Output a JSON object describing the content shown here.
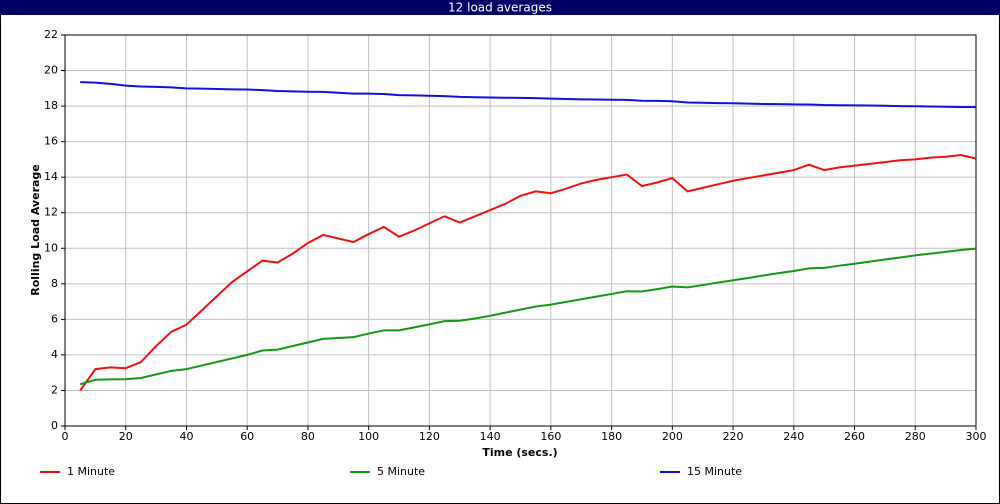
{
  "chart_data": {
    "type": "line",
    "title": "12 load averages",
    "x_label": "Time (secs.)",
    "y_label": "Rolling Load Average",
    "x": [
      5,
      10,
      15,
      20,
      25,
      30,
      35,
      40,
      45,
      50,
      55,
      60,
      65,
      70,
      75,
      80,
      85,
      90,
      95,
      100,
      105,
      110,
      115,
      120,
      125,
      130,
      135,
      140,
      145,
      150,
      155,
      160,
      165,
      170,
      175,
      180,
      185,
      190,
      195,
      200,
      205,
      210,
      215,
      220,
      225,
      230,
      235,
      240,
      245,
      250,
      255,
      260,
      265,
      270,
      275,
      280,
      285,
      290,
      295,
      300
    ],
    "series": [
      {
        "name": "1 Minute",
        "color": "#ee1111",
        "values": [
          2.0,
          3.2,
          3.3,
          3.25,
          3.6,
          4.5,
          5.3,
          5.7,
          6.5,
          7.3,
          8.1,
          8.7,
          9.3,
          9.2,
          9.7,
          10.3,
          10.75,
          10.55,
          10.35,
          10.8,
          11.2,
          10.65,
          11.0,
          11.4,
          11.8,
          11.45,
          11.8,
          12.15,
          12.5,
          12.95,
          13.2,
          13.1,
          13.35,
          13.65,
          13.85,
          14.0,
          14.15,
          13.5,
          13.7,
          13.95,
          13.2,
          13.4,
          13.6,
          13.8,
          13.95,
          14.1,
          14.25,
          14.4,
          14.7,
          14.4,
          14.55,
          14.65,
          14.75,
          14.85,
          14.95,
          15.0,
          15.1,
          15.15,
          15.25,
          15.05
        ]
      },
      {
        "name": "5 Minute",
        "color": "#119911",
        "values": [
          2.35,
          2.6,
          2.62,
          2.63,
          2.7,
          2.9,
          3.1,
          3.2,
          3.4,
          3.6,
          3.8,
          4.0,
          4.25,
          4.3,
          4.5,
          4.7,
          4.9,
          4.95,
          5.0,
          5.2,
          5.38,
          5.38,
          5.55,
          5.72,
          5.9,
          5.92,
          6.05,
          6.2,
          6.38,
          6.55,
          6.72,
          6.83,
          6.98,
          7.13,
          7.28,
          7.43,
          7.58,
          7.57,
          7.7,
          7.85,
          7.8,
          7.93,
          8.07,
          8.2,
          8.33,
          8.47,
          8.6,
          8.72,
          8.87,
          8.9,
          9.02,
          9.13,
          9.25,
          9.37,
          9.48,
          9.6,
          9.7,
          9.8,
          9.9,
          9.98
        ]
      },
      {
        "name": "15 Minute",
        "color": "#1111dd",
        "values": [
          19.35,
          19.32,
          19.25,
          19.15,
          19.1,
          19.08,
          19.05,
          19.0,
          18.98,
          18.96,
          18.94,
          18.93,
          18.9,
          18.85,
          18.83,
          18.81,
          18.8,
          18.75,
          18.7,
          18.7,
          18.68,
          18.62,
          18.6,
          18.58,
          18.56,
          18.52,
          18.5,
          18.48,
          18.47,
          18.46,
          18.45,
          18.42,
          18.4,
          18.38,
          18.37,
          18.36,
          18.35,
          18.3,
          18.29,
          18.27,
          18.2,
          18.19,
          18.17,
          18.16,
          18.14,
          18.12,
          18.11,
          18.1,
          18.09,
          18.06,
          18.05,
          18.04,
          18.03,
          18.02,
          18.0,
          17.99,
          17.98,
          17.96,
          17.95,
          17.94
        ]
      }
    ],
    "xlim": [
      0,
      300
    ],
    "xticks": [
      0,
      20,
      40,
      60,
      80,
      100,
      120,
      140,
      160,
      180,
      200,
      220,
      240,
      260,
      280,
      300
    ],
    "ylim": [
      0,
      22
    ],
    "yticks": [
      0,
      2,
      4,
      6,
      8,
      10,
      12,
      14,
      16,
      18,
      20,
      22
    ],
    "grid": true
  }
}
